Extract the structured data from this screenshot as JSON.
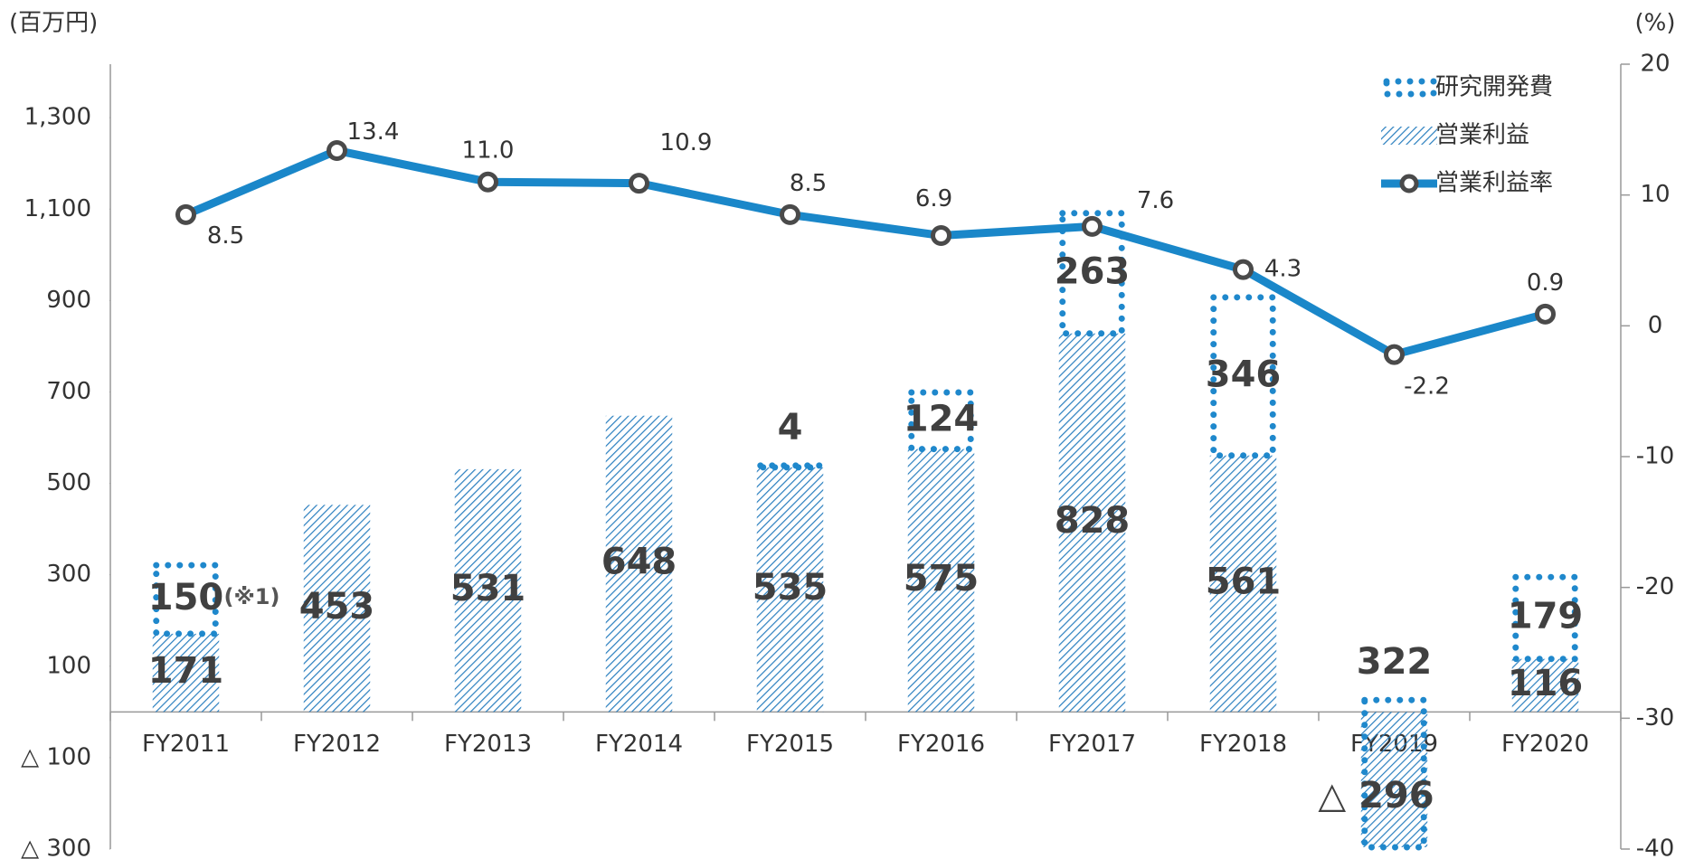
{
  "chart_data": {
    "type": "bar_line",
    "y_label": "(百万円)",
    "y2_label": "(%)",
    "annotation": "(※1)",
    "categories": [
      "FY2011",
      "FY2012",
      "FY2013",
      "FY2014",
      "FY2015",
      "FY2016",
      "FY2017",
      "FY2018",
      "FY2019",
      "FY2020"
    ],
    "series": [
      {
        "name": "研究開発費",
        "color": "#1f88cc",
        "values": [
          150,
          null,
          null,
          null,
          4,
          124,
          263,
          346,
          322,
          179
        ]
      },
      {
        "name": "営業利益",
        "color": "#2a7fbf",
        "values": [
          171,
          453,
          531,
          648,
          535,
          575,
          828,
          561,
          -296,
          116
        ],
        "value_labels": [
          "171",
          "453",
          "531",
          "648",
          "535",
          "575",
          "828",
          "561",
          "△ 296",
          "116"
        ]
      },
      {
        "name": "営業利益率",
        "color": "#1a87c9",
        "axis": "y2",
        "values": [
          8.5,
          13.4,
          11.0,
          10.9,
          8.5,
          6.9,
          7.6,
          4.3,
          -2.2,
          0.9
        ],
        "value_labels": [
          "8.5",
          "13.4",
          "11.0",
          "10.9",
          "8.5",
          "6.9",
          "7.6",
          "4.3",
          "-2.2",
          "0.9"
        ]
      }
    ],
    "ylim": [
      -300,
      1417
    ],
    "yticks": [
      {
        "value": 1300,
        "label": "1,300"
      },
      {
        "value": 1100,
        "label": "1,100"
      },
      900,
      700,
      500,
      300,
      100,
      {
        "value": -100,
        "label": "△ 100"
      },
      {
        "value": -300,
        "label": "△ 300"
      }
    ],
    "y2lim": [
      -40,
      20
    ],
    "y2ticks": [
      20,
      10,
      0,
      -10,
      -20,
      -30,
      -40
    ],
    "legend": "top-right"
  }
}
